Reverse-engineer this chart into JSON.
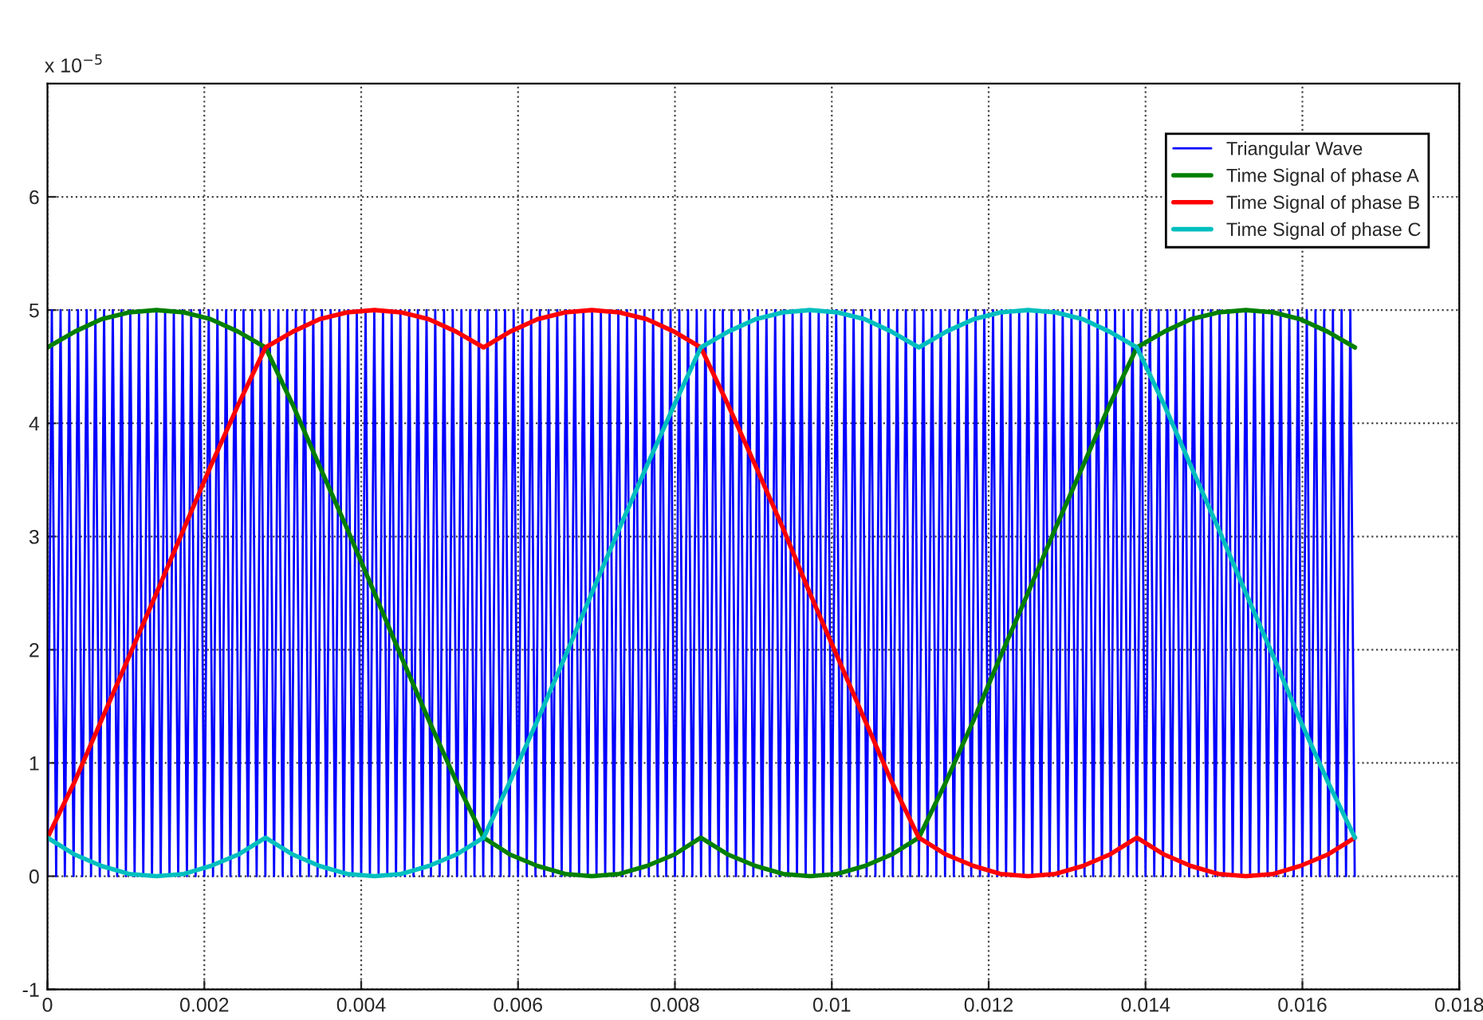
{
  "chart_data": {
    "type": "line",
    "annotations": [
      "x 10$^{−5}$"
    ],
    "x": [
      0,
      0.00035,
      0.00069,
      0.00104,
      0.00139,
      0.00174,
      0.00208,
      0.00243,
      0.00278,
      0.00313,
      0.00347,
      0.00382,
      0.00417,
      0.00451,
      0.00486,
      0.00521,
      0.00556,
      0.0059,
      0.00625,
      0.0066,
      0.00694,
      0.00729,
      0.00764,
      0.00799,
      0.00833,
      0.00868,
      0.00903,
      0.00938,
      0.00972,
      0.01007,
      0.01042,
      0.01076,
      0.01111,
      0.01146,
      0.01181,
      0.01215,
      0.0125,
      0.01285,
      0.0132,
      0.01354,
      0.01389,
      0.01424,
      0.01458,
      0.01493,
      0.01528,
      0.01563,
      0.01597,
      0.01632,
      0.01667
    ],
    "series": [
      {
        "name": "Triangular Wave",
        "color": "#0000ff",
        "x": [
          0,
          5.6e-05,
          0.000111,
          0.000167,
          0.000222,
          0.000278,
          0.000333,
          0.000389,
          0.000444,
          0.0005,
          0.000556,
          0.000611,
          0.000667,
          0.000722,
          0.000778,
          0.000833,
          0.000889,
          0.000944,
          0.001,
          0.001056,
          0.001111,
          0.001167,
          0.001222,
          0.001278,
          0.001333,
          0.001389,
          0.001444,
          0.0015,
          0.001556,
          0.001611,
          0.001667,
          0.001722,
          0.001778,
          0.001833,
          0.001889,
          0.001944,
          0.002,
          0.002056,
          0.002111,
          0.002167,
          0.002222,
          0.002278,
          0.002333,
          0.002389,
          0.002444,
          0.0025,
          0.002556,
          0.002611,
          0.002667,
          0.002722,
          0.002778,
          0.002833,
          0.002889,
          0.002944,
          0.003,
          0.003056,
          0.003111,
          0.003167,
          0.003222,
          0.003278,
          0.003333,
          0.003389,
          0.003444,
          0.0035,
          0.003556,
          0.003611,
          0.003667,
          0.003722,
          0.003778,
          0.003833,
          0.003889,
          0.003944,
          0.004,
          0.004056,
          0.004111,
          0.004167,
          0.004222,
          0.004278,
          0.004333,
          0.004389,
          0.004444,
          0.0045,
          0.004556,
          0.004611,
          0.004667,
          0.004722,
          0.004778,
          0.004833,
          0.004889,
          0.004944,
          0.005,
          0.005056,
          0.005111,
          0.005167,
          0.005222,
          0.005278,
          0.005333,
          0.005389,
          0.005444,
          0.0055,
          0.005556,
          0.005611,
          0.005667,
          0.005722,
          0.005778,
          0.005833,
          0.005889,
          0.005944,
          0.006,
          0.006056,
          0.006111,
          0.006167,
          0.006222,
          0.006278,
          0.006333,
          0.006389,
          0.006444,
          0.0065,
          0.006556,
          0.006611,
          0.006667,
          0.006722,
          0.006778,
          0.006833,
          0.006889,
          0.006944,
          0.007,
          0.007056,
          0.007111,
          0.007167,
          0.007222,
          0.007278,
          0.007333,
          0.007389,
          0.007444,
          0.0075,
          0.007556,
          0.007611,
          0.007667,
          0.007722,
          0.007778,
          0.007833,
          0.007889,
          0.007944,
          0.008,
          0.008056,
          0.008111,
          0.008167,
          0.008222,
          0.008278,
          0.008333,
          0.008389,
          0.008444,
          0.0085,
          0.008556,
          0.008611,
          0.008667,
          0.008722,
          0.008778,
          0.008833,
          0.008889,
          0.008944,
          0.009,
          0.009056,
          0.009111,
          0.009167,
          0.009222,
          0.009278,
          0.009333,
          0.009389,
          0.009444,
          0.0095,
          0.009556,
          0.009611,
          0.009667,
          0.009722,
          0.009778,
          0.009833,
          0.009889,
          0.009944,
          0.01,
          0.010056,
          0.010111,
          0.010167,
          0.010222,
          0.010278,
          0.010333,
          0.010389,
          0.010444,
          0.0105,
          0.010556,
          0.010611,
          0.010667,
          0.010722,
          0.010778,
          0.010833,
          0.010889,
          0.010944,
          0.011,
          0.011056,
          0.011111,
          0.011167,
          0.011222,
          0.011278,
          0.011333,
          0.011389,
          0.011444,
          0.0115,
          0.011556,
          0.011611,
          0.011667,
          0.011722,
          0.011778,
          0.011833,
          0.011889,
          0.011944,
          0.012,
          0.012056,
          0.012111,
          0.012167,
          0.012222,
          0.012278,
          0.012333,
          0.012389,
          0.012444,
          0.0125,
          0.012556,
          0.012611,
          0.012667,
          0.012722,
          0.012778,
          0.012833,
          0.012889,
          0.012944,
          0.013,
          0.013056,
          0.013111,
          0.013167,
          0.013222,
          0.013278,
          0.013333,
          0.013389,
          0.013444,
          0.0135,
          0.013556,
          0.013611,
          0.013667,
          0.013722,
          0.013778,
          0.013833,
          0.013889,
          0.013944,
          0.014,
          0.014056,
          0.014111,
          0.014167,
          0.014222,
          0.014278,
          0.014333,
          0.014389,
          0.014444,
          0.0145,
          0.014556,
          0.014611,
          0.014667,
          0.014722,
          0.014778,
          0.014833,
          0.014889,
          0.014944,
          0.015,
          0.015056,
          0.015111,
          0.015167,
          0.015222,
          0.015278,
          0.015333,
          0.015389,
          0.015444,
          0.0155,
          0.015556,
          0.015611,
          0.015667,
          0.015722,
          0.015778,
          0.015833,
          0.015889,
          0.015944,
          0.016,
          0.016056,
          0.016111,
          0.016167,
          0.016222,
          0.016278,
          0.016333,
          0.016389,
          0.016444,
          0.0165,
          0.016556,
          0.016611,
          0.016667
        ],
        "values": [
          0,
          5,
          0,
          5,
          0,
          5,
          0,
          5,
          0,
          5,
          0,
          5,
          0,
          5,
          0,
          5,
          0,
          5,
          0,
          5,
          0,
          5,
          0,
          5,
          0,
          5,
          0,
          5,
          0,
          5,
          0,
          5,
          0,
          5,
          0,
          5,
          0,
          5,
          0,
          5,
          0,
          5,
          0,
          5,
          0,
          5,
          0,
          5,
          0,
          5,
          0,
          5,
          0,
          5,
          0,
          5,
          0,
          5,
          0,
          5,
          0,
          5,
          0,
          5,
          0,
          5,
          0,
          5,
          0,
          5,
          0,
          5,
          0,
          5,
          0,
          5,
          0,
          5,
          0,
          5,
          0,
          5,
          0,
          5,
          0,
          5,
          0,
          5,
          0,
          5,
          0,
          5,
          0,
          5,
          0,
          5,
          0,
          5,
          0,
          5,
          0,
          5,
          0,
          5,
          0,
          5,
          0,
          5,
          0,
          5,
          0,
          5,
          0,
          5,
          0,
          5,
          0,
          5,
          0,
          5,
          0,
          5,
          0,
          5,
          0,
          5,
          0,
          5,
          0,
          5,
          0,
          5,
          0,
          5,
          0,
          5,
          0,
          5,
          0,
          5,
          0,
          5,
          0,
          5,
          0,
          5,
          0,
          5,
          0,
          5,
          0,
          5,
          0,
          5,
          0,
          5,
          0,
          5,
          0,
          5,
          0,
          5,
          0,
          5,
          0,
          5,
          0,
          5,
          0,
          5,
          0,
          5,
          0,
          5,
          0,
          5,
          0,
          5,
          0,
          5,
          0,
          5,
          0,
          5,
          0,
          5,
          0,
          5,
          0,
          5,
          0,
          5,
          0,
          5,
          0,
          5,
          0,
          5,
          0,
          5,
          0,
          5,
          0,
          5,
          0,
          5,
          0,
          5,
          0,
          5,
          0,
          5,
          0,
          5,
          0,
          5,
          0,
          5,
          0,
          5,
          0,
          5,
          0,
          5,
          0,
          5,
          0,
          5,
          0,
          5,
          0,
          5,
          0,
          5,
          0,
          5,
          0,
          5,
          0,
          5,
          0,
          5,
          0,
          5,
          0,
          5,
          0,
          5,
          0,
          5,
          0,
          5,
          0,
          5,
          0,
          5,
          0,
          5,
          0,
          5,
          0,
          5,
          0,
          5,
          0,
          5,
          0,
          5,
          0,
          5,
          0,
          5,
          0,
          5,
          0,
          5,
          0,
          5,
          0,
          5,
          0,
          5,
          0,
          5,
          0,
          5,
          0,
          5,
          0,
          5,
          0,
          5,
          0,
          5,
          0,
          5,
          0,
          5,
          0,
          5,
          0
        ]
      },
      {
        "name": "Time Signal of phase A",
        "color": "#008000",
        "values": [
          4.67,
          4.81,
          4.92,
          4.98,
          5,
          4.98,
          4.92,
          4.81,
          4.67,
          4.16,
          3.62,
          3.07,
          2.5,
          1.94,
          1.38,
          0.84,
          0.34,
          0.19,
          0.09,
          0.02,
          0,
          0.02,
          0.09,
          0.19,
          0.34,
          0.19,
          0.09,
          0.02,
          0,
          0.02,
          0.09,
          0.19,
          0.34,
          0.84,
          1.38,
          1.94,
          2.5,
          3.07,
          3.62,
          4.16,
          4.67,
          4.81,
          4.92,
          4.98,
          5,
          4.98,
          4.92,
          4.81,
          4.67
        ]
      },
      {
        "name": "Time Signal of phase B",
        "color": "#ff0000",
        "values": [
          0.34,
          0.84,
          1.38,
          1.94,
          2.5,
          3.07,
          3.62,
          4.16,
          4.67,
          4.81,
          4.92,
          4.98,
          5,
          4.98,
          4.92,
          4.81,
          4.67,
          4.81,
          4.92,
          4.98,
          5,
          4.98,
          4.92,
          4.81,
          4.67,
          4.16,
          3.62,
          3.07,
          2.5,
          1.94,
          1.38,
          0.84,
          0.34,
          0.19,
          0.09,
          0.02,
          0,
          0.02,
          0.09,
          0.19,
          0.34,
          0.19,
          0.09,
          0.02,
          0,
          0.02,
          0.09,
          0.19,
          0.34
        ]
      },
      {
        "name": "Time Signal of phase C",
        "color": "#00bfbf",
        "values": [
          0.34,
          0.19,
          0.09,
          0.02,
          0,
          0.02,
          0.09,
          0.19,
          0.34,
          0.19,
          0.09,
          0.02,
          0,
          0.02,
          0.09,
          0.19,
          0.34,
          0.84,
          1.38,
          1.94,
          2.5,
          3.07,
          3.62,
          4.16,
          4.67,
          4.81,
          4.92,
          4.98,
          5,
          4.98,
          4.92,
          4.81,
          4.67,
          4.81,
          4.92,
          4.98,
          5,
          4.98,
          4.92,
          4.81,
          4.67,
          4.16,
          3.62,
          3.07,
          2.5,
          1.94,
          1.38,
          0.84,
          0.34
        ]
      }
    ],
    "xlim": [
      0,
      0.018
    ],
    "xticks": [
      0,
      0.002,
      0.004,
      0.006,
      0.008,
      0.01,
      0.012,
      0.014,
      0.016,
      0.018
    ],
    "ylim": [
      -1,
      7
    ],
    "yticks": [
      -1,
      0,
      1,
      2,
      3,
      4,
      5,
      6
    ],
    "grid": true,
    "legend": "top right"
  }
}
